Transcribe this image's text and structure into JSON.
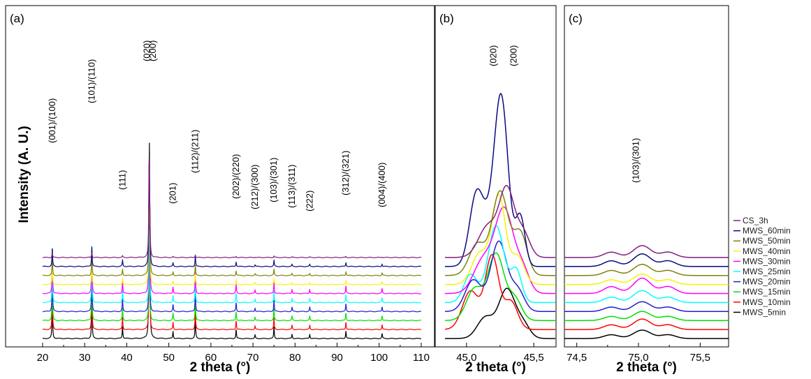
{
  "chart_data": [
    {
      "panel": "(a)",
      "type": "line",
      "xlabel": "2 theta (°)",
      "ylabel": "Intensity (A. U.)",
      "xlim": [
        20,
        110
      ],
      "x_ticks": [
        "20",
        "30",
        "40",
        "50",
        "60",
        "70",
        "80",
        "90",
        "100",
        "110"
      ],
      "peaks": [
        22.3,
        31.7,
        39.0,
        45.3,
        45.5,
        51.0,
        56.3,
        66.0,
        70.5,
        75.0,
        79.3,
        83.5,
        92.1,
        100.7
      ],
      "annotations": [
        {
          "text": "(001)/(100)",
          "x": 22.3
        },
        {
          "text": "(101)/(110)",
          "x": 31.7
        },
        {
          "text": "(111)",
          "x": 39.0
        },
        {
          "text": "(020)",
          "x": 44.8
        },
        {
          "text": "(200)",
          "x": 46.2
        },
        {
          "text": "(201)",
          "x": 51.0
        },
        {
          "text": "(112)/(211)",
          "x": 56.3
        },
        {
          "text": "(202)/(220)",
          "x": 66.0
        },
        {
          "text": "(212)/(300)",
          "x": 70.5
        },
        {
          "text": "(103)/(301)",
          "x": 75.0
        },
        {
          "text": "(113)/(311)",
          "x": 79.3
        },
        {
          "text": "(222)",
          "x": 83.5
        },
        {
          "text": "(312)/(321)",
          "x": 92.1
        },
        {
          "text": "(004)/(400)",
          "x": 100.7
        }
      ]
    },
    {
      "panel": "(b)",
      "type": "line",
      "xlabel": "2 theta (°)",
      "xlim": [
        44.84,
        45.66
      ],
      "x_ticks": [
        "45,0",
        "45,5"
      ],
      "annotations": [
        {
          "text": "(020)",
          "x": 45.2
        },
        {
          "text": "(200)",
          "x": 45.35
        }
      ]
    },
    {
      "panel": "(c)",
      "type": "line",
      "xlabel": "2 theta (°)",
      "xlim": [
        74.4,
        75.73
      ],
      "x_ticks": [
        "74,5",
        "75,0",
        "75,5"
      ],
      "annotations": [
        {
          "text": "(103)/(301)",
          "x": 74.98
        }
      ]
    }
  ],
  "series": [
    {
      "name": "CS_3h",
      "color": "#7f1f7f"
    },
    {
      "name": "MWS_60min",
      "color": "#0a0a80"
    },
    {
      "name": "MWS_50min",
      "color": "#808010"
    },
    {
      "name": "MWS_40min",
      "color": "#f5f500"
    },
    {
      "name": "MWS_30min",
      "color": "#ff00ff"
    },
    {
      "name": "MWS_25min",
      "color": "#00ffff"
    },
    {
      "name": "MWS_20min",
      "color": "#1f1fd0"
    },
    {
      "name": "MWS_15min",
      "color": "#00e000"
    },
    {
      "name": "MWS_10min",
      "color": "#ff0000"
    },
    {
      "name": "MWS_5min",
      "color": "#000000"
    }
  ],
  "legend_position": "right"
}
